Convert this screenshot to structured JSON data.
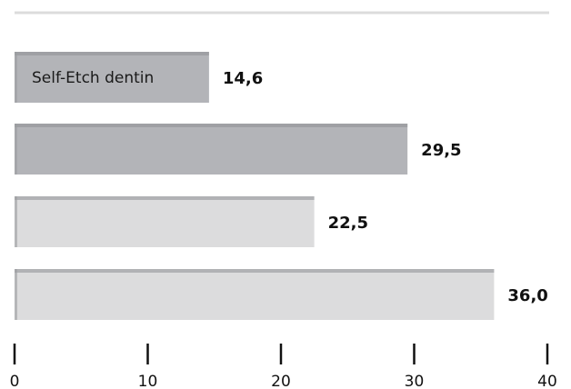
{
  "chart_data": {
    "type": "bar",
    "orientation": "horizontal",
    "categories": [
      "Self-Etch dentin",
      "",
      "",
      ""
    ],
    "values": [
      14.6,
      29.5,
      22.5,
      36.0
    ],
    "value_labels": [
      "14,6",
      "29,5",
      "22,5",
      "36,0"
    ],
    "bar_colors": [
      "#b3b4b8",
      "#b3b4b8",
      "#dcdcdd",
      "#dcdcdd"
    ],
    "xlim": [
      0,
      40
    ],
    "x_ticks": [
      0,
      10,
      20,
      30,
      40
    ],
    "x_tick_labels": [
      "0",
      "10",
      "20",
      "30",
      "40"
    ],
    "title": "",
    "xlabel": "",
    "ylabel": "",
    "grid": false,
    "legend": "none"
  },
  "colors": {
    "top_rule": "#dcdcdc",
    "bar_top_shadow": "#8e8f93",
    "bar_left_shadow": "#9b9ca0",
    "axis_tick": "#111111"
  }
}
